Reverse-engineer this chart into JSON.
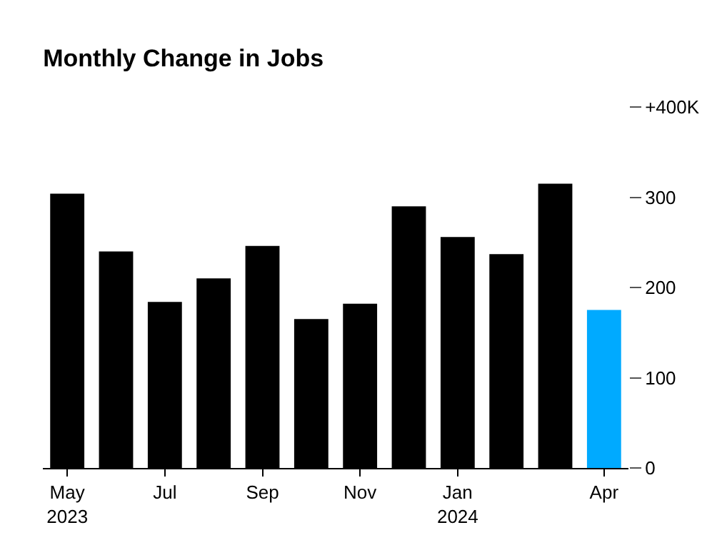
{
  "chart_data": {
    "type": "bar",
    "title": "Monthly Change in Jobs",
    "categories": [
      "May\n2023",
      null,
      "Jul",
      null,
      "Sep",
      null,
      "Nov",
      null,
      "Jan\n2024",
      null,
      null,
      "Apr"
    ],
    "values": [
      304,
      240,
      184,
      210,
      246,
      165,
      182,
      290,
      256,
      237,
      315,
      175
    ],
    "colors": [
      "#000000",
      "#000000",
      "#000000",
      "#000000",
      "#000000",
      "#000000",
      "#000000",
      "#000000",
      "#000000",
      "#000000",
      "#000000",
      "#00aaff"
    ],
    "ylim": [
      0,
      400
    ],
    "yticks": [
      0,
      100,
      200,
      300,
      {
        "value": 400,
        "label": "+400K"
      }
    ]
  }
}
